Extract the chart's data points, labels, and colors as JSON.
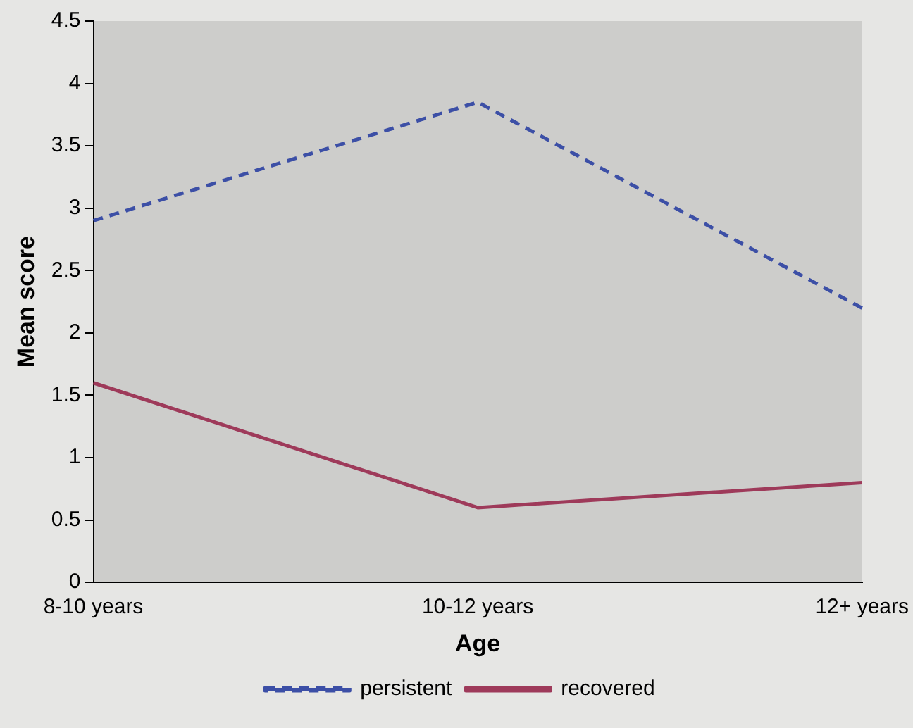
{
  "chart_data": {
    "type": "line",
    "xlabel": "Age",
    "ylabel": "Mean score",
    "categories": [
      "8-10 years",
      "10-12 years",
      "12+ years"
    ],
    "series": [
      {
        "name": "persistent",
        "color": "#3c4fa6",
        "values": [
          2.9,
          3.85,
          2.2
        ],
        "line_style": "dashed"
      },
      {
        "name": "recovered",
        "color": "#9e3a5a",
        "values": [
          1.6,
          0.6,
          0.8
        ],
        "line_style": "solid"
      }
    ],
    "ylim": [
      0,
      4.5
    ],
    "yticks": [
      0,
      0.5,
      1,
      1.5,
      2,
      2.5,
      3,
      3.5,
      4,
      4.5
    ],
    "grid": false,
    "legend": "bottom",
    "marker": "none"
  }
}
